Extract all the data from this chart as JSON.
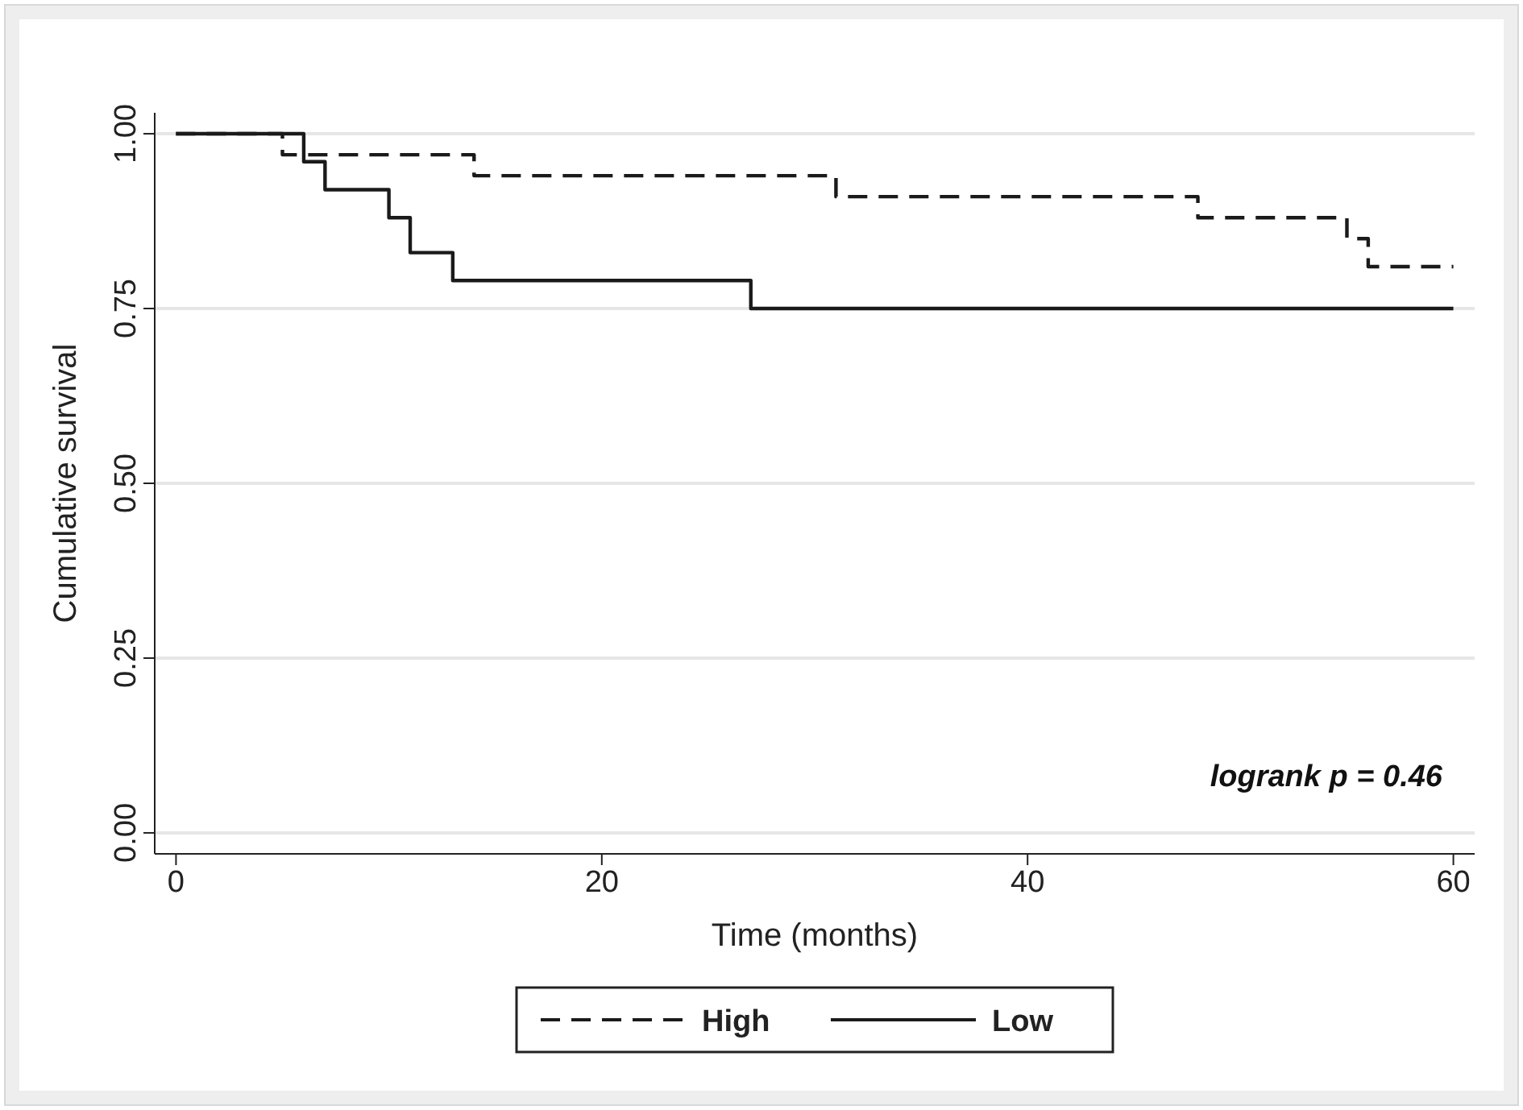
{
  "chart_data": {
    "type": "step",
    "xlabel": "Time (months)",
    "ylabel": "Cumulative survival",
    "xlim": [
      -1,
      61
    ],
    "xticks": [
      0,
      20,
      40,
      60
    ],
    "ylim": [
      -0.03,
      1.03
    ],
    "yticks": [
      {
        "value": 0,
        "label": "0.00"
      },
      {
        "value": 0.25,
        "label": "0.25"
      },
      {
        "value": 0.5,
        "label": "0.50"
      },
      {
        "value": 0.75,
        "label": "0.75"
      },
      {
        "value": 1,
        "label": "1.00"
      }
    ],
    "grid": "y",
    "legend": "bottom",
    "marker": "none",
    "series": [
      {
        "name": "High",
        "color": "#1a1a1a",
        "line_style": "dashed",
        "x": [
          0,
          5,
          14,
          31,
          48,
          55,
          56,
          60
        ],
        "values": [
          1,
          0.97,
          0.94,
          0.91,
          0.88,
          0.85,
          0.81,
          0.81
        ]
      },
      {
        "name": "Low",
        "color": "#1a1a1a",
        "line_style": "solid",
        "x": [
          0,
          6,
          7,
          10,
          11,
          13,
          27,
          60
        ],
        "values": [
          1,
          0.96,
          0.92,
          0.88,
          0.83,
          0.79,
          0.75,
          0.75
        ]
      }
    ],
    "annotations": [
      "logrank p = 0.46"
    ]
  }
}
